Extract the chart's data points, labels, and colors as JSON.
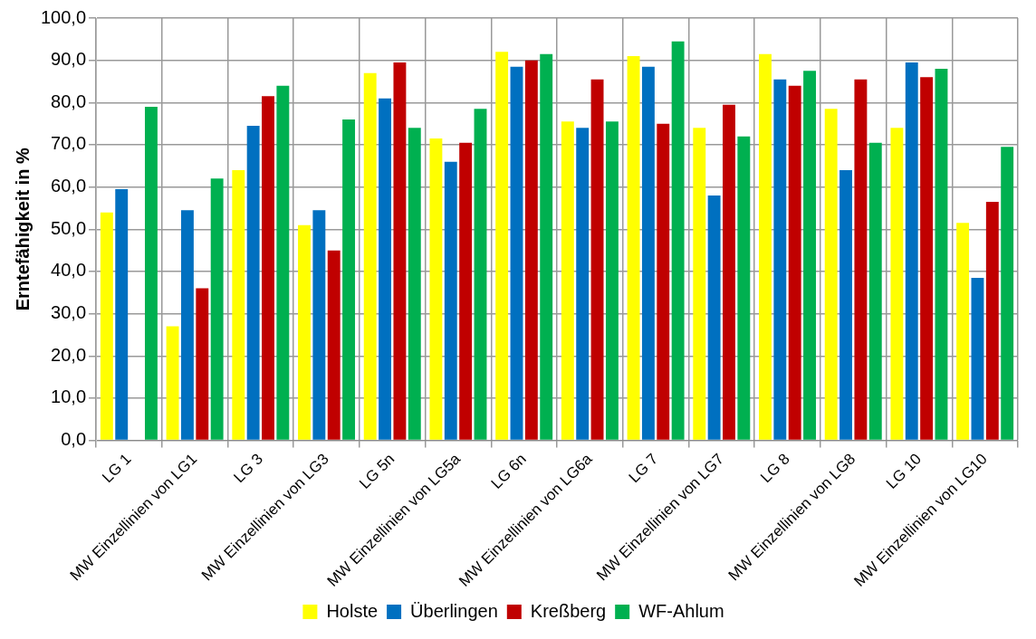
{
  "chart_data": {
    "type": "bar",
    "ylabel": "Erntefähigkeit in %",
    "categories": [
      "LG 1",
      "MW Einzellinien von LG1",
      "LG 3",
      "MW Einzellinien von LG3",
      "LG 5n",
      "MW Einzellinien von LG5a",
      "LG 6n",
      "MW Einzellinien von LG6a",
      "LG 7",
      "MW Einzellinien von LG7",
      "LG 8",
      "MW Einzellinien von LG8",
      "LG 10",
      "MW Einzellinien von LG10"
    ],
    "series": [
      {
        "name": "Holste",
        "color": "#ffff00",
        "values": [
          54,
          27,
          64,
          51,
          87,
          71.5,
          92,
          75.5,
          91,
          74,
          91.5,
          78.5,
          74,
          51.5
        ]
      },
      {
        "name": "Überlingen",
        "color": "#0070c0",
        "values": [
          59.5,
          54.5,
          74.5,
          54.5,
          81,
          66,
          88.5,
          74,
          88.5,
          58,
          85.5,
          64,
          89.5,
          38.5
        ]
      },
      {
        "name": "Kreßberg",
        "color": "#c00000",
        "values": [
          null,
          36,
          81.5,
          45,
          89.5,
          70.5,
          90,
          85.5,
          75,
          79.5,
          84,
          85.5,
          86,
          56.5
        ]
      },
      {
        "name": "WF-Ahlum",
        "color": "#00b050",
        "values": [
          79,
          62,
          84,
          76,
          74,
          78.5,
          91.5,
          75.5,
          94.5,
          72,
          87.5,
          70.5,
          88,
          69.5
        ]
      }
    ],
    "ylim": [
      0,
      100
    ],
    "yticks": [
      {
        "value": 0,
        "label": "0,0"
      },
      {
        "value": 10,
        "label": "10,0"
      },
      {
        "value": 20,
        "label": "20,0"
      },
      {
        "value": 30,
        "label": "30,0"
      },
      {
        "value": 40,
        "label": "40,0"
      },
      {
        "value": 50,
        "label": "50,0"
      },
      {
        "value": 60,
        "label": "60,0"
      },
      {
        "value": 70,
        "label": "70,0"
      },
      {
        "value": 80,
        "label": "80,0"
      },
      {
        "value": 90,
        "label": "90,0"
      },
      {
        "value": 100,
        "label": "100,0"
      }
    ],
    "grid": true,
    "legend": "bottom"
  }
}
